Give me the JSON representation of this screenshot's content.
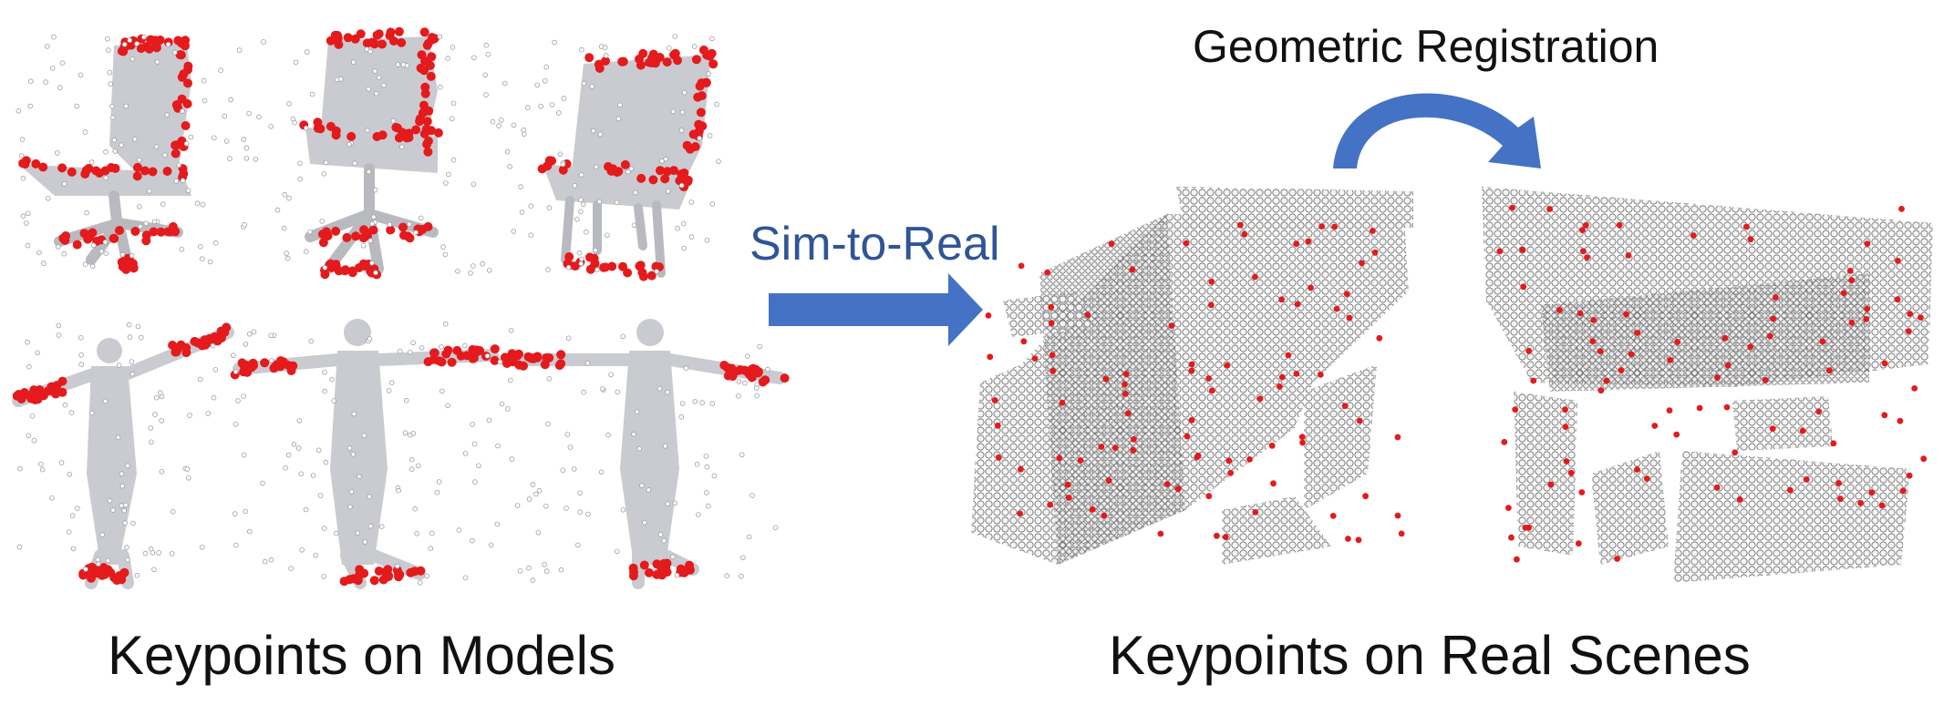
{
  "captions": {
    "left": "Keypoints on Models",
    "right": "Keypoints on Real Scenes"
  },
  "arrows": {
    "sim_to_real": "Sim-to-Real",
    "registration": "Geometric Registration"
  },
  "colors": {
    "arrow": "#4472C4",
    "arrow_text": "#2F5597",
    "points": "#C9CBD0",
    "keypoints": "#E41A1C",
    "scene_points": "#8C8C8C"
  }
}
